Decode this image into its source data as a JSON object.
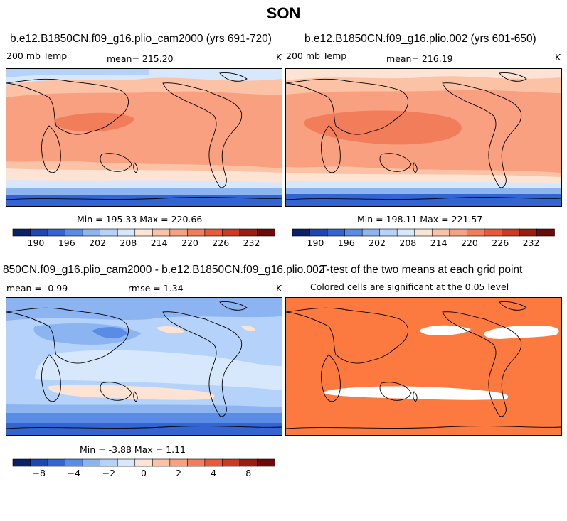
{
  "main_title": "SON",
  "panels": {
    "p1": {
      "title": "b.e12.B1850CN.f09_g16.plio_cam2000 (yrs 691-720)",
      "left": "200 mb Temp",
      "center": "mean= 215.20",
      "right": "K",
      "minmax": "Min = 195.33 Max = 220.66"
    },
    "p2": {
      "title": "b.e12.B1850CN.f09_g16.plio.002 (yrs 601-650)",
      "left": "200 mb Temp",
      "center": "mean= 216.19",
      "right": "K",
      "minmax": "Min = 198.11 Max = 221.57"
    },
    "p3": {
      "title": "850CN.f09_g16.plio_cam2000 - b.e12.B1850CN.f09_g16.plio.002",
      "left": "mean = -0.99",
      "center": "rmse = 1.34",
      "right": "K",
      "minmax": "Min = -3.88 Max = 1.11"
    },
    "p4": {
      "title": "T-test of the two means at each grid point",
      "subtitle": "Colored cells are significant at the 0.05 level"
    }
  },
  "colors": {
    "abs_scale": [
      "#08216b",
      "#1e46b4",
      "#3264d2",
      "#5a8ce6",
      "#8cb4f0",
      "#b4d2fa",
      "#d8e8fc",
      "#fde3d3",
      "#fbc2a6",
      "#f8a07f",
      "#f27d5a",
      "#e85a3a",
      "#cc3a22",
      "#9c1c10",
      "#6e0a06"
    ],
    "diff_scale": [
      "#08216b",
      "#1e46b4",
      "#3264d2",
      "#5a8ce6",
      "#8cb4f0",
      "#b4d2fa",
      "#d8e8fc",
      "#fde3d3",
      "#fbc2a6",
      "#f8a07f",
      "#f27d5a",
      "#e85a3a",
      "#cc3a22",
      "#9c1c10",
      "#6e0a06"
    ],
    "ttest_fill": "#fc7a40"
  },
  "chart_data": [
    {
      "type": "heatmap",
      "title": "b.e12.B1850CN.f09_g16.plio_cam2000 (yrs 691-720)",
      "variable": "200 mb Temp",
      "units": "K",
      "mean": 215.2,
      "min": 195.33,
      "max": 220.66,
      "colorbar_ticks": [
        190,
        196,
        202,
        208,
        214,
        220,
        226,
        232
      ]
    },
    {
      "type": "heatmap",
      "title": "b.e12.B1850CN.f09_g16.plio.002 (yrs 601-650)",
      "variable": "200 mb Temp",
      "units": "K",
      "mean": 216.19,
      "min": 198.11,
      "max": 221.57,
      "colorbar_ticks": [
        190,
        196,
        202,
        208,
        214,
        220,
        226,
        232
      ]
    },
    {
      "type": "heatmap",
      "title": "850CN.f09_g16.plio_cam2000 - b.e12.B1850CN.f09_g16.plio.002",
      "units": "K",
      "mean": -0.99,
      "rmse": 1.34,
      "min": -3.88,
      "max": 1.11,
      "colorbar_ticks": [
        -8,
        -4,
        -2,
        0,
        2,
        4,
        8
      ]
    },
    {
      "type": "heatmap",
      "title": "T-test of the two means at each grid point",
      "subtitle": "Colored cells are significant at the 0.05 level"
    }
  ]
}
